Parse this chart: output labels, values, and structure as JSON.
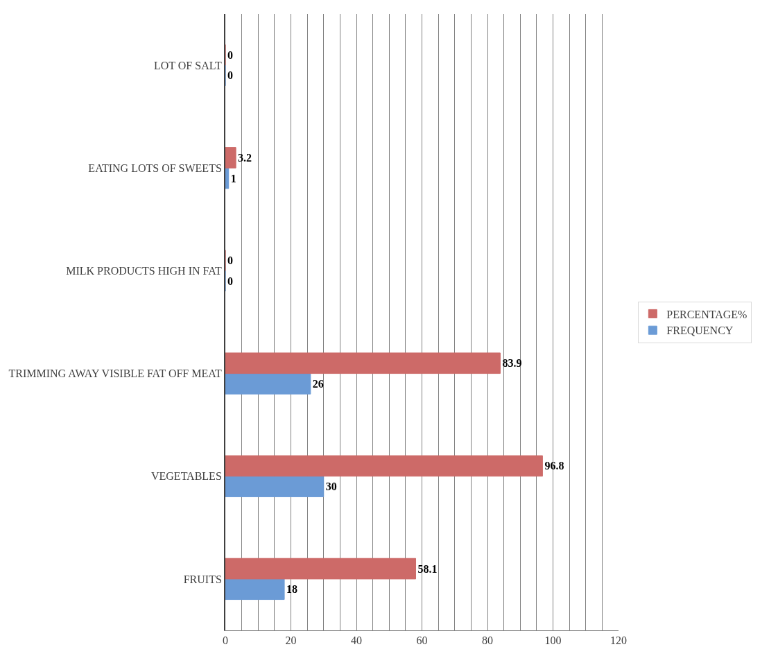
{
  "chart_data": {
    "type": "bar",
    "orientation": "horizontal",
    "categories": [
      "LOT OF SALT",
      "EATING LOTS OF SWEETS",
      "MILK PRODUCTS HIGH IN FAT",
      "TRIMMING AWAY VISIBLE FAT OFF MEAT",
      "VEGETABLES",
      "FRUITS"
    ],
    "series": [
      {
        "name": "PERCENTAGE%",
        "color": "#cd6a68",
        "values": [
          0,
          3.2,
          0,
          83.9,
          96.8,
          58.1
        ]
      },
      {
        "name": "FREQUENCY",
        "color": "#6b9bd6",
        "values": [
          0,
          1,
          0,
          26,
          30,
          18
        ]
      }
    ],
    "xlim": [
      0,
      120
    ],
    "xticks": [
      0,
      {
        "value": 5,
        "label": null
      },
      {
        "value": 10,
        "label": null
      },
      {
        "value": 15,
        "label": null
      },
      20,
      {
        "value": 25,
        "label": null
      },
      {
        "value": 30,
        "label": null
      },
      {
        "value": 35,
        "label": null
      },
      40,
      {
        "value": 45,
        "label": null
      },
      {
        "value": 50,
        "label": null
      },
      {
        "value": 55,
        "label": null
      },
      60,
      {
        "value": 65,
        "label": null
      },
      {
        "value": 70,
        "label": null
      },
      {
        "value": 75,
        "label": null
      },
      80,
      {
        "value": 85,
        "label": null
      },
      {
        "value": 90,
        "label": null
      },
      {
        "value": 95,
        "label": null
      },
      100,
      {
        "value": 105,
        "label": null
      },
      {
        "value": 110,
        "label": null
      },
      {
        "value": 115,
        "label": null
      },
      120
    ],
    "grid": "x",
    "legend": "right",
    "data_labels": true
  }
}
